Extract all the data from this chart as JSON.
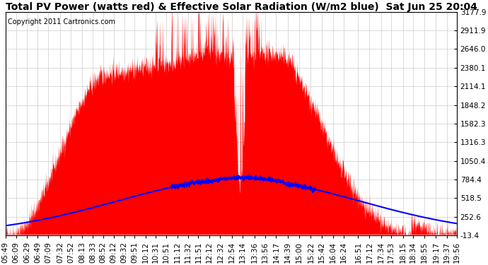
{
  "title": "Total PV Power (watts red) & Effective Solar Radiation (W/m2 blue)  Sat Jun 25 20:04",
  "copyright": "Copyright 2011 Cartronics.com",
  "ylim": [
    -13.4,
    3177.9
  ],
  "yticks": [
    3177.9,
    2911.9,
    2646.0,
    2380.1,
    2114.1,
    1848.2,
    1582.3,
    1316.3,
    1050.4,
    784.4,
    518.5,
    252.6,
    -13.4
  ],
  "xtick_labels": [
    "05:49",
    "06:09",
    "06:29",
    "06:49",
    "07:09",
    "07:32",
    "07:52",
    "08:13",
    "08:33",
    "08:52",
    "09:12",
    "09:32",
    "09:51",
    "10:12",
    "10:31",
    "10:51",
    "11:12",
    "11:32",
    "11:51",
    "12:12",
    "12:32",
    "12:54",
    "13:14",
    "13:36",
    "13:56",
    "14:17",
    "14:39",
    "15:00",
    "15:22",
    "15:42",
    "16:04",
    "16:24",
    "16:51",
    "17:12",
    "17:34",
    "17:53",
    "18:15",
    "18:34",
    "18:55",
    "19:17",
    "19:37",
    "19:56"
  ],
  "bg_color": "#ffffff",
  "plot_bg_color": "#ffffff",
  "grid_color": "#cccccc",
  "red_fill_color": "#ff0000",
  "blue_line_color": "#0000ff",
  "title_fontsize": 10,
  "tick_fontsize": 7.5,
  "copyright_fontsize": 7
}
